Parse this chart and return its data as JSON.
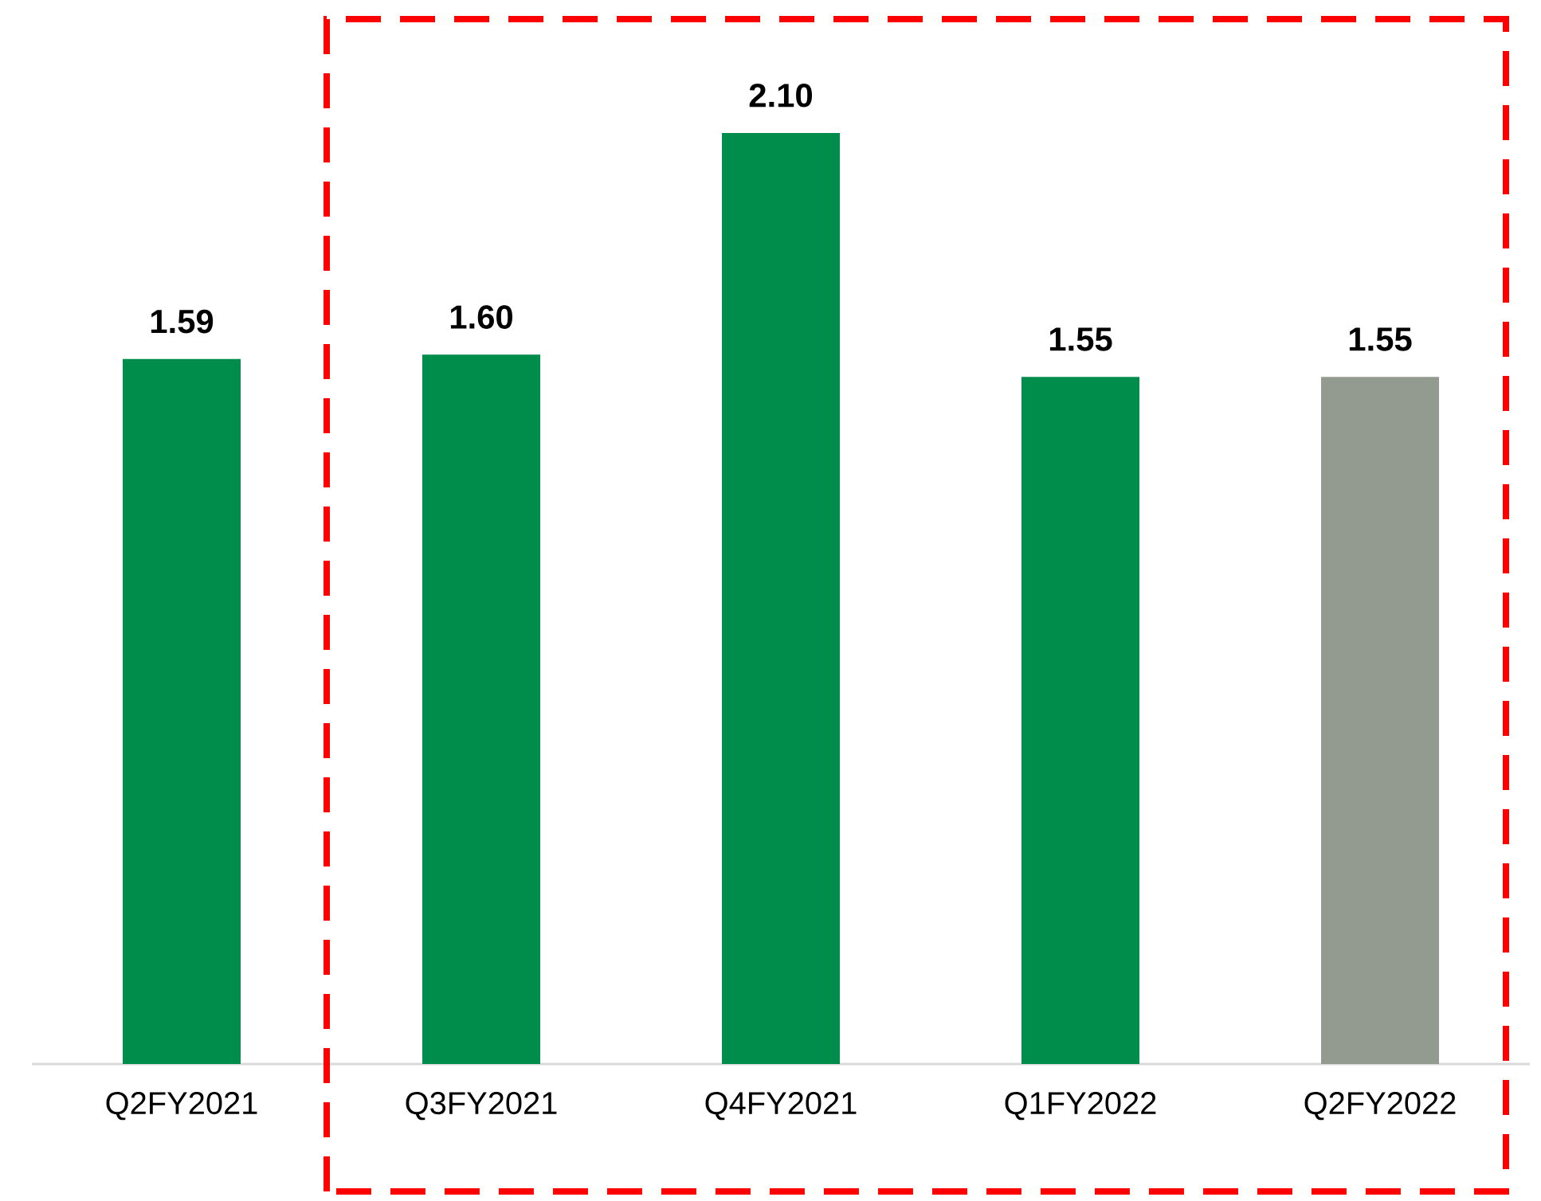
{
  "chart_data": {
    "type": "bar",
    "categories": [
      "Q2FY2021",
      "Q3FY2021",
      "Q4FY2021",
      "Q1FY2022",
      "Q2FY2022"
    ],
    "values": [
      1.59,
      1.6,
      2.1,
      1.55,
      1.55
    ],
    "value_labels": [
      "1.59",
      "1.60",
      "2.10",
      "1.55",
      "1.55"
    ],
    "colors": [
      "#008c4a",
      "#008c4a",
      "#008c4a",
      "#008c4a",
      "#939a8f"
    ]
  }
}
